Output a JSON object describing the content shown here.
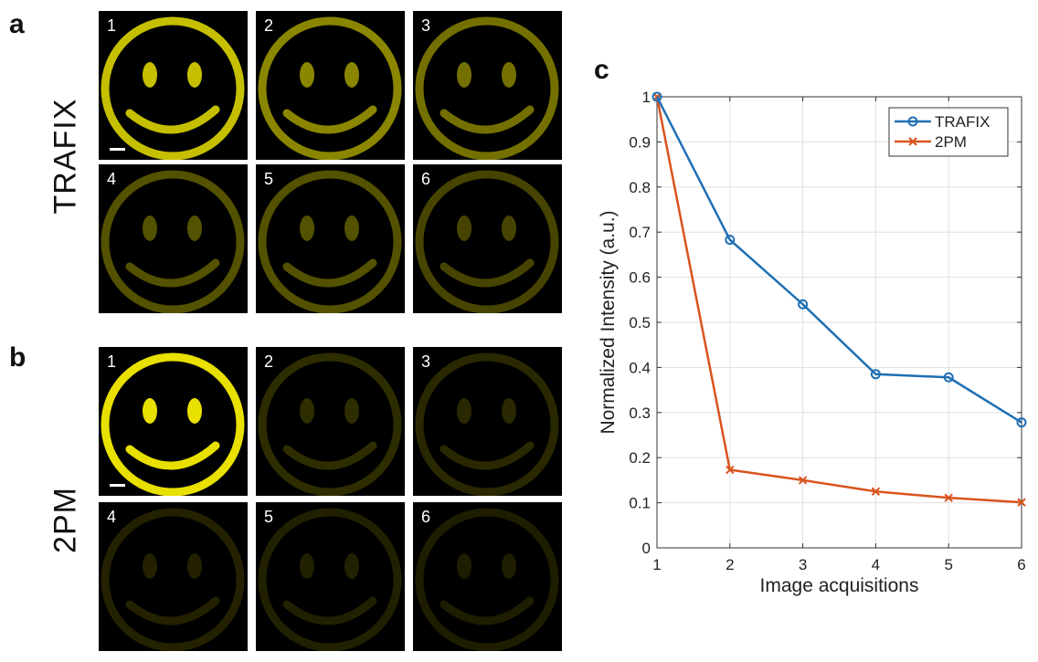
{
  "panels": {
    "a": {
      "letter": "a",
      "label": "TRAFIX",
      "tiles": [
        {
          "num": "1",
          "brightness": 0.85
        },
        {
          "num": "2",
          "brightness": 0.6
        },
        {
          "num": "3",
          "brightness": 0.5
        },
        {
          "num": "4",
          "brightness": 0.36
        },
        {
          "num": "5",
          "brightness": 0.36
        },
        {
          "num": "6",
          "brightness": 0.3
        }
      ]
    },
    "b": {
      "letter": "b",
      "label": "2PM",
      "tiles": [
        {
          "num": "1",
          "brightness": 1.0
        },
        {
          "num": "2",
          "brightness": 0.2
        },
        {
          "num": "3",
          "brightness": 0.18
        },
        {
          "num": "4",
          "brightness": 0.15
        },
        {
          "num": "5",
          "brightness": 0.14
        },
        {
          "num": "6",
          "brightness": 0.13
        }
      ]
    },
    "c": {
      "letter": "c"
    }
  },
  "colors": {
    "smiley": "#e8e000",
    "trafix": "#1f6fb4",
    "twopm": "#d9541e",
    "grid": "#e0e0e0",
    "axis": "#333333"
  },
  "chart_data": {
    "type": "line",
    "x": [
      1,
      2,
      3,
      4,
      5,
      6
    ],
    "xlabel": "Image acquisitions",
    "ylabel": "Normalized Intensity (a.u.)",
    "xlim": [
      1,
      6
    ],
    "ylim": [
      0,
      1
    ],
    "xticks": [
      "1",
      "2",
      "3",
      "4",
      "5",
      "6"
    ],
    "yticks": [
      "0",
      "0.1",
      "0.2",
      "0.3",
      "0.4",
      "0.5",
      "0.6",
      "0.7",
      "0.8",
      "0.9",
      "1"
    ],
    "grid": true,
    "legend_position": "top-right",
    "series": [
      {
        "name": "TRAFIX",
        "marker": "circle",
        "values": [
          1.0,
          0.683,
          0.54,
          0.385,
          0.378,
          0.278
        ]
      },
      {
        "name": "2PM",
        "marker": "x",
        "values": [
          1.0,
          0.173,
          0.15,
          0.125,
          0.111,
          0.101
        ]
      }
    ]
  }
}
